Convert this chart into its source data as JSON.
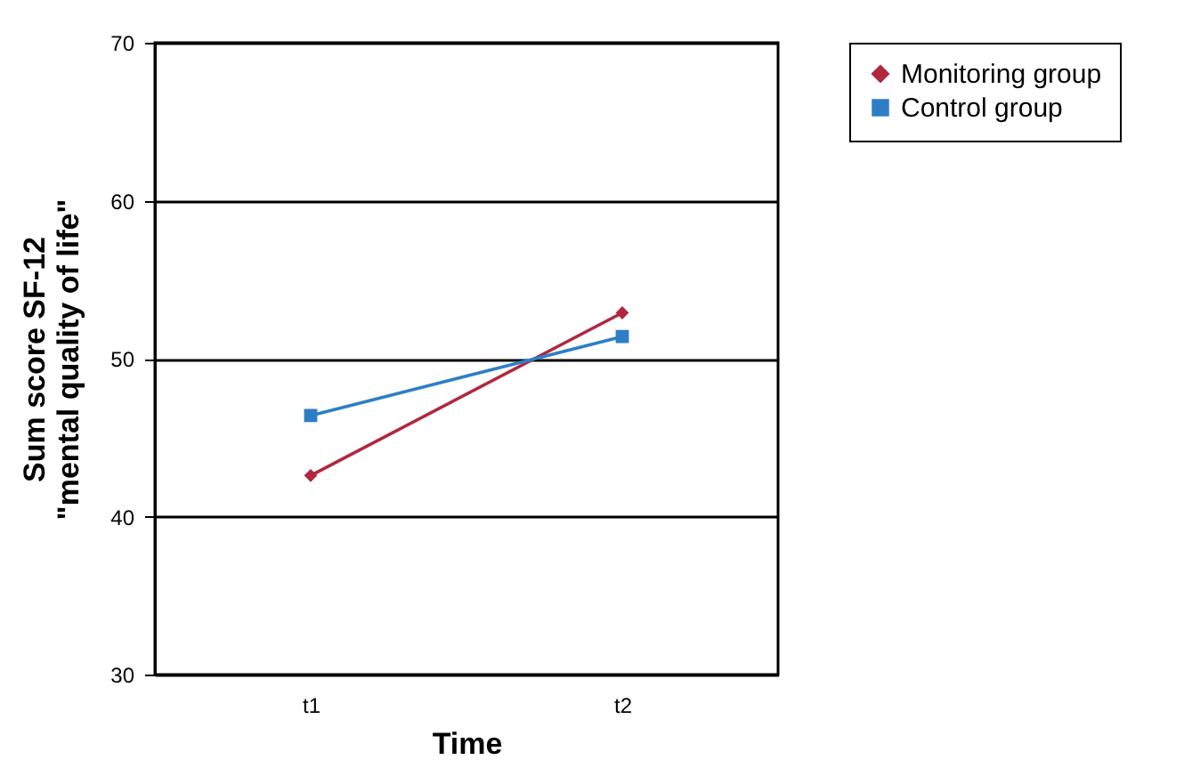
{
  "chart_data": {
    "type": "line",
    "xlabel": "Time",
    "ylabel": "Sum score SF-12\n\"mental quality of life\"",
    "categories": [
      "t1",
      "t2"
    ],
    "series": [
      {
        "name": "Monitoring group",
        "color": "#b0283f",
        "values": [
          42.6,
          52.9
        ],
        "marker": "diamond"
      },
      {
        "name": "Control group",
        "color": "#2e7ec6",
        "values": [
          46.4,
          51.4
        ],
        "marker": "square"
      }
    ],
    "ylim": [
      30,
      70
    ],
    "yticks": [
      30,
      40,
      50,
      60,
      70
    ],
    "grid": "y",
    "legend": "right",
    "line_style": "solid"
  }
}
